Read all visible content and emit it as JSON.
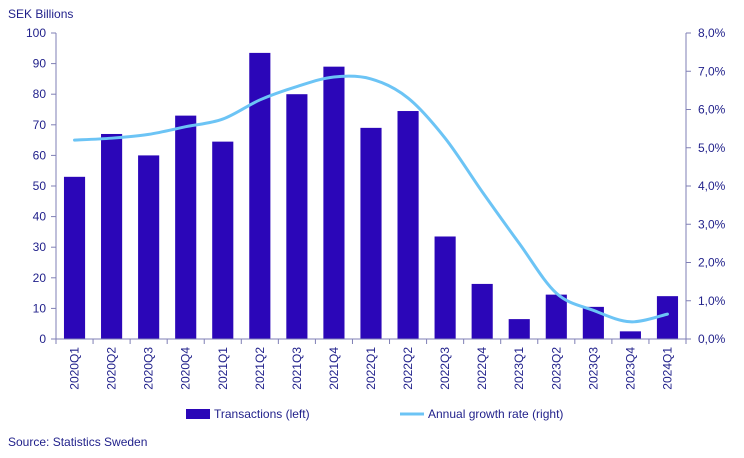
{
  "chart_data": {
    "type": "bar",
    "ylabel_left": "SEK Billions",
    "categories": [
      "2020Q1",
      "2020Q2",
      "2020Q3",
      "2020Q4",
      "2021Q1",
      "2021Q2",
      "2021Q3",
      "2021Q4",
      "2022Q1",
      "2022Q2",
      "2022Q3",
      "2022Q4",
      "2023Q1",
      "2023Q2",
      "2023Q3",
      "2023Q4",
      "2024Q1"
    ],
    "series": [
      {
        "name": "Transactions (left)",
        "type": "bar",
        "axis": "left",
        "color": "#2b06b8",
        "values": [
          53,
          67,
          60,
          73,
          64.5,
          93.5,
          80,
          89,
          69,
          74.5,
          33.5,
          18,
          6.5,
          14.5,
          10.5,
          2.5,
          14
        ]
      },
      {
        "name": "Annual growth rate (right)",
        "type": "line",
        "axis": "right",
        "color": "#6cc4f5",
        "values": [
          5.2,
          5.25,
          5.35,
          5.55,
          5.75,
          6.25,
          6.6,
          6.85,
          6.8,
          6.3,
          5.25,
          3.85,
          2.5,
          1.2,
          0.75,
          0.45,
          0.65
        ]
      }
    ],
    "y_left": {
      "min": 0,
      "max": 100,
      "step": 10,
      "ticks": [
        "0",
        "10",
        "20",
        "30",
        "40",
        "50",
        "60",
        "70",
        "80",
        "90",
        "100"
      ]
    },
    "y_right": {
      "min": 0,
      "max": 8,
      "step": 1,
      "ticks": [
        "0,0%",
        "1,0%",
        "2,0%",
        "3,0%",
        "4,0%",
        "5,0%",
        "6,0%",
        "7,0%",
        "8,0%"
      ]
    },
    "grid": false,
    "legend_position": "bottom"
  },
  "source": "Source: Statistics Sweden",
  "colors": {
    "text": "#1f1f8a",
    "axis": "#7f7fb5"
  }
}
